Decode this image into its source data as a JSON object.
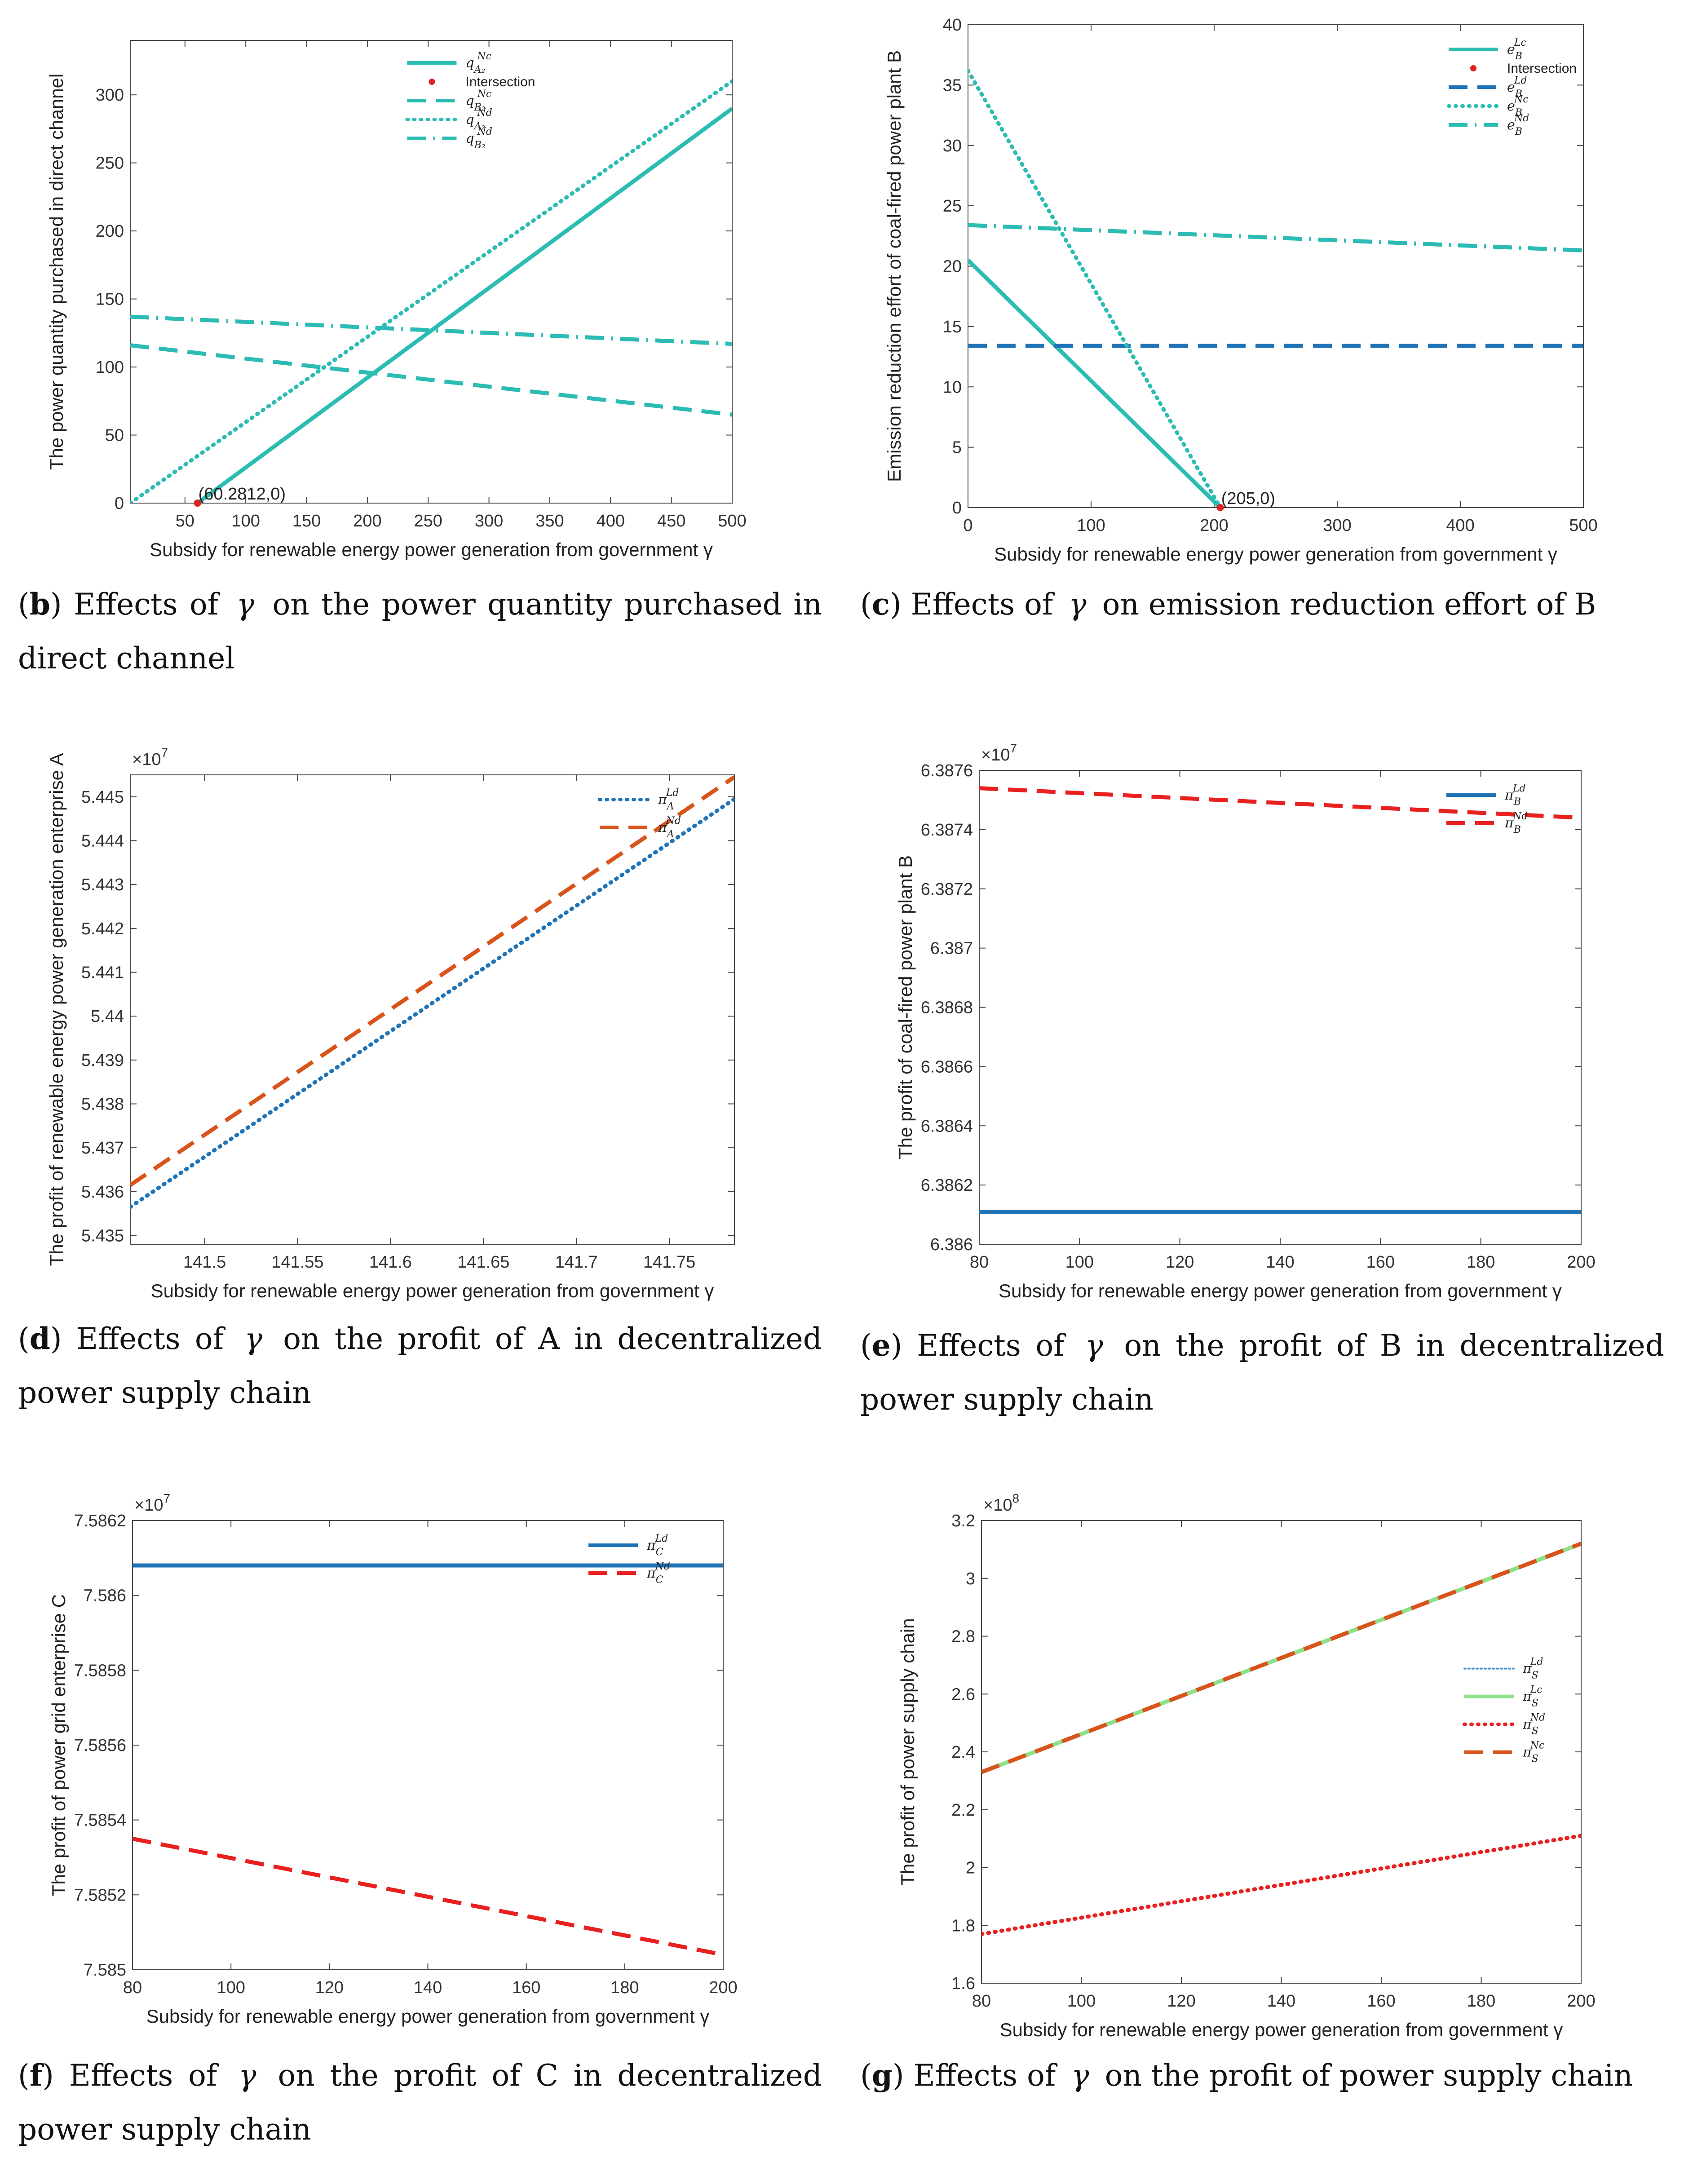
{
  "chart_data": [
    {
      "id": "b",
      "type": "line",
      "caption": {
        "letter": "b",
        "before": "Effects of",
        "symbol": "γ",
        "after": "on the power quantity purchased in direct channel"
      },
      "xlabel": "Subsidy for renewable energy power generation from government γ",
      "ylabel": "The power quantity purchased in direct channel",
      "xlim": [
        5,
        500
      ],
      "ylim": [
        0,
        340
      ],
      "xticks": [
        50,
        100,
        150,
        200,
        250,
        300,
        350,
        400,
        450,
        500
      ],
      "yticks": [
        0,
        50,
        100,
        150,
        200,
        250,
        300
      ],
      "exponent": "",
      "legend_pos": "top-center",
      "series": [
        {
          "name": "q_A2^Nc",
          "legend": "q",
          "sup": "Nc",
          "sub": "A₂",
          "style": "solid",
          "color": "#2bbcb3",
          "x": [
            60.28,
            500
          ],
          "y": [
            0,
            290
          ]
        },
        {
          "name": "Intersection",
          "legend": "Intersection",
          "sup": "",
          "sub": "",
          "style": "dot-marker",
          "color": "#e02020",
          "x": [
            60.28
          ],
          "y": [
            0
          ]
        },
        {
          "name": "q_B2^Nc",
          "legend": "q",
          "sup": "Nc",
          "sub": "B₂",
          "style": "dashed",
          "color": "#2bbcb3",
          "x": [
            5,
            500
          ],
          "y": [
            116,
            65
          ]
        },
        {
          "name": "q_A2^Nd",
          "legend": "q",
          "sup": "Nd",
          "sub": "A₂",
          "style": "dotted",
          "color": "#2bbcb3",
          "x": [
            5,
            500
          ],
          "y": [
            0,
            310
          ]
        },
        {
          "name": "q_B2^Nd",
          "legend": "q",
          "sup": "Nd",
          "sub": "B₂",
          "style": "dashdot",
          "color": "#2bbcb3",
          "x": [
            5,
            500
          ],
          "y": [
            137,
            117
          ]
        }
      ],
      "annotation": {
        "text": "(60.2812,0)",
        "x": 60.28,
        "y": 0
      }
    },
    {
      "id": "c",
      "type": "line",
      "caption": {
        "letter": "c",
        "before": "Effects of",
        "symbol": "γ",
        "after": "on emission reduction effort of B"
      },
      "xlabel": "Subsidy for renewable energy power generation from government γ",
      "ylabel": "Emission reduction effort of coal-fired power plant B",
      "xlim": [
        0,
        500
      ],
      "ylim": [
        0,
        40
      ],
      "xticks": [
        0,
        100,
        200,
        300,
        400,
        500
      ],
      "yticks": [
        0,
        5,
        10,
        15,
        20,
        25,
        30,
        35,
        40
      ],
      "exponent": "",
      "legend_pos": "top-right",
      "series": [
        {
          "name": "e_B^Lc",
          "legend": "e",
          "sup": "Lc",
          "sub": "B",
          "style": "solid",
          "color": "#2bbcb3",
          "x": [
            0,
            205
          ],
          "y": [
            20.5,
            0
          ]
        },
        {
          "name": "Intersection",
          "legend": "Intersection",
          "sup": "",
          "sub": "",
          "style": "dot-marker",
          "color": "#e02020",
          "x": [
            205
          ],
          "y": [
            0
          ]
        },
        {
          "name": "e_B^Ld",
          "legend": "e",
          "sup": "Ld",
          "sub": "B",
          "style": "dashed",
          "color": "#1f74b8",
          "x": [
            0,
            500
          ],
          "y": [
            13.4,
            13.4
          ]
        },
        {
          "name": "e_B^Nc",
          "legend": "e",
          "sup": "Nc",
          "sub": "B",
          "style": "dotted",
          "color": "#2bbcb3",
          "x": [
            0,
            205
          ],
          "y": [
            36.2,
            0
          ]
        },
        {
          "name": "e_B^Nd",
          "legend": "e",
          "sup": "Nd",
          "sub": "B",
          "style": "dashdot",
          "color": "#2bbcb3",
          "x": [
            0,
            500
          ],
          "y": [
            23.4,
            21.3
          ]
        }
      ],
      "annotation": {
        "text": "(205,0)",
        "x": 205,
        "y": 0
      }
    },
    {
      "id": "d",
      "type": "line",
      "caption": {
        "letter": "d",
        "before": "Effects of",
        "symbol": "γ",
        "after": "on the profit of A in decentralized power supply chain"
      },
      "xlabel": "Subsidy for renewable energy power generation from government γ",
      "ylabel": "The profit of renewable energy power generation enterprise A",
      "xlim": [
        141.46,
        141.785
      ],
      "ylim": [
        5.4348,
        5.4455
      ],
      "xticks": [
        141.5,
        141.55,
        141.6,
        141.65,
        141.7,
        141.75
      ],
      "yticks": [
        5.435,
        5.436,
        5.437,
        5.438,
        5.439,
        5.44,
        5.441,
        5.442,
        5.443,
        5.444,
        5.445
      ],
      "exponent": "×10",
      "exponent_power": "7",
      "legend_pos": "top-right",
      "series": [
        {
          "name": "pi_A^Ld",
          "legend": "π",
          "sup": "Ld",
          "sub": "A",
          "style": "dotted",
          "color": "#1f74b8",
          "x": [
            141.46,
            141.785
          ],
          "y": [
            5.43565,
            5.44495
          ]
        },
        {
          "name": "pi_A^Nd",
          "legend": "π",
          "sup": "Nd",
          "sub": "A",
          "style": "dashed",
          "color": "#d9541a",
          "x": [
            141.46,
            141.785
          ],
          "y": [
            5.43615,
            5.44545
          ]
        }
      ]
    },
    {
      "id": "e",
      "type": "line",
      "caption": {
        "letter": "e",
        "before": "Effects of",
        "symbol": "γ",
        "after": "on the profit of B in decentralized power supply chain"
      },
      "xlabel": "Subsidy for renewable energy power generation from government γ",
      "ylabel": "The profit of coal-fired power plant B",
      "xlim": [
        80,
        200
      ],
      "ylim": [
        6.386,
        6.3876
      ],
      "xticks": [
        80,
        100,
        120,
        140,
        160,
        180,
        200
      ],
      "yticks": [
        6.386,
        6.3862,
        6.3864,
        6.3866,
        6.3868,
        6.387,
        6.3872,
        6.3874,
        6.3876
      ],
      "exponent": "×10",
      "exponent_power": "7",
      "legend_pos": "top-right",
      "series": [
        {
          "name": "pi_B^Ld",
          "legend": "π",
          "sup": "Ld",
          "sub": "B",
          "style": "solid",
          "color": "#1f74b8",
          "x": [
            80,
            200
          ],
          "y": [
            6.38611,
            6.38611
          ]
        },
        {
          "name": "pi_B^Nd",
          "legend": "π",
          "sup": "Nd",
          "sub": "B",
          "style": "dashed",
          "color": "#e82020",
          "x": [
            80,
            200
          ],
          "y": [
            6.38754,
            6.38744
          ]
        }
      ]
    },
    {
      "id": "f",
      "type": "line",
      "caption": {
        "letter": "f",
        "before": "Effects of",
        "symbol": "γ",
        "after": "on the profit of C in decentralized power supply chain"
      },
      "xlabel": "Subsidy for renewable energy power generation from government γ",
      "ylabel": "The profit of power grid enterprise C",
      "xlim": [
        80,
        200
      ],
      "ylim": [
        7.585,
        7.5862
      ],
      "xticks": [
        80,
        100,
        120,
        140,
        160,
        180,
        200
      ],
      "yticks": [
        7.585,
        7.5852,
        7.5854,
        7.5856,
        7.5858,
        7.586,
        7.5862
      ],
      "exponent": "×10",
      "exponent_power": "7",
      "legend_pos": "top-right",
      "series": [
        {
          "name": "pi_C^Ld",
          "legend": "π",
          "sup": "Ld",
          "sub": "C",
          "style": "solid",
          "color": "#1f74b8",
          "x": [
            80,
            200
          ],
          "y": [
            7.58608,
            7.58608
          ]
        },
        {
          "name": "pi_C^Nd",
          "legend": "π",
          "sup": "Nd",
          "sub": "C",
          "style": "dashed",
          "color": "#e82020",
          "x": [
            80,
            200
          ],
          "y": [
            7.58535,
            7.58504
          ]
        }
      ]
    },
    {
      "id": "g",
      "type": "line",
      "caption": {
        "letter": "g",
        "before": "Effects of",
        "symbol": "γ",
        "after": "on the profit of power supply chain"
      },
      "xlabel": "Subsidy for renewable energy power generation from government γ",
      "ylabel": "The profit of power supply chain",
      "xlim": [
        80,
        200
      ],
      "ylim": [
        1.6,
        3.2
      ],
      "xticks": [
        80,
        100,
        120,
        140,
        160,
        180,
        200
      ],
      "yticks": [
        1.6,
        1.8,
        2,
        2.2,
        2.4,
        2.6,
        2.8,
        3,
        3.2
      ],
      "exponent": "×10",
      "exponent_power": "8",
      "legend_pos": "middle-right",
      "series": [
        {
          "name": "pi_S^Ld",
          "legend": "π",
          "sup": "Ld",
          "sub": "S",
          "style": "thin-dotted",
          "color": "#3a8fcf",
          "x": [
            80,
            200
          ],
          "y": [
            2.33,
            3.12
          ]
        },
        {
          "name": "pi_S^Lc",
          "legend": "π",
          "sup": "Lc",
          "sub": "S",
          "style": "solid-light",
          "color": "#8fe08a",
          "x": [
            80,
            200
          ],
          "y": [
            2.33,
            3.12
          ]
        },
        {
          "name": "pi_S^Nd",
          "legend": "π",
          "sup": "Nd",
          "sub": "S",
          "style": "dotted",
          "color": "#e82020",
          "x": [
            80,
            200
          ],
          "y": [
            1.77,
            2.11
          ]
        },
        {
          "name": "pi_S^Nc",
          "legend": "π",
          "sup": "Nc",
          "sub": "S",
          "style": "dashed",
          "color": "#d9541a",
          "x": [
            80,
            200
          ],
          "y": [
            2.33,
            3.12
          ]
        }
      ]
    }
  ]
}
